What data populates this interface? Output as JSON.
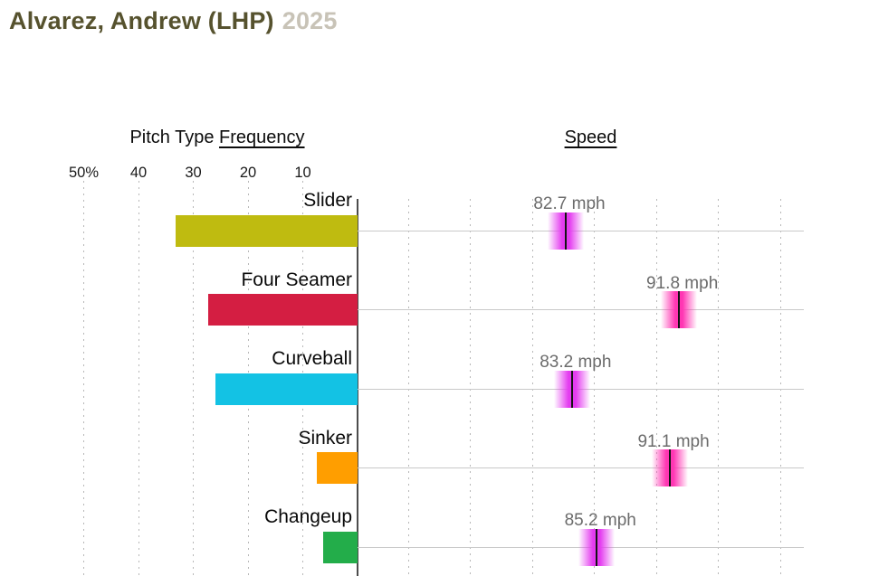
{
  "page_title": {
    "player": "Alvarez, Andrew (LHP)",
    "year": "2025"
  },
  "headers": {
    "frequency_prefix": "Pitch Type ",
    "frequency_underlined": "Frequency",
    "speed": "Speed"
  },
  "colors": {
    "title_text": "#56522e",
    "title_year": "#c8c3b7",
    "axis_line": "#4d4d4d",
    "gridline": "#b8b8b8",
    "row_line": "#c9c9c9",
    "speed_label_text": "#6b6b6b"
  },
  "chart_data": {
    "type": "bar",
    "title": "Pitch Type Frequency",
    "secondary_title": "Speed",
    "categories": [
      "Slider",
      "Four Seamer",
      "Curveball",
      "Sinker",
      "Changeup"
    ],
    "series": [
      {
        "name": "Frequency (%)",
        "values": [
          33.3,
          27.2,
          25.9,
          7.4,
          6.2
        ]
      },
      {
        "name": "Speed (mph)",
        "values": [
          82.7,
          91.8,
          83.2,
          91.1,
          85.2
        ]
      }
    ],
    "freq_axis": {
      "ticks": [
        {
          "label": "50%",
          "value": 50
        },
        {
          "label": "40",
          "value": 40
        },
        {
          "label": "30",
          "value": 30
        },
        {
          "label": "20",
          "value": 20
        },
        {
          "label": "10",
          "value": 10
        }
      ],
      "range": [
        0,
        50
      ],
      "direction": "right-to-left"
    },
    "speed_axis": {
      "gridlines_mph": [
        70,
        75,
        80,
        85,
        90,
        95,
        100
      ],
      "range": [
        66,
        102
      ],
      "tick_labels_visible": false,
      "grid": "dashed-vertical"
    },
    "pitches": [
      {
        "name": "Slider",
        "pct": 33.3,
        "pct_label": "33.3%",
        "bar_color": "#bfbb10",
        "speed": 82.7,
        "speed_label": "82.7 mph",
        "speed_color": "#e43cf0"
      },
      {
        "name": "Four Seamer",
        "pct": 27.2,
        "pct_label": "27.2%",
        "bar_color": "#d41e42",
        "speed": 91.8,
        "speed_label": "91.8 mph",
        "speed_color": "#ff36b3"
      },
      {
        "name": "Curveball",
        "pct": 25.9,
        "pct_label": "25.9%",
        "bar_color": "#13c2e4",
        "speed": 83.2,
        "speed_label": "83.2 mph",
        "speed_color": "#e43cf0"
      },
      {
        "name": "Sinker",
        "pct": 7.4,
        "pct_label": "7.4%",
        "bar_color": "#ff9e00",
        "speed": 91.1,
        "speed_label": "91.1 mph",
        "speed_color": "#ff36b3"
      },
      {
        "name": "Changeup",
        "pct": 6.2,
        "pct_label": "6.2%",
        "bar_color": "#23ad4a",
        "speed": 85.2,
        "speed_label": "85.2 mph",
        "speed_color": "#e43cf0"
      }
    ]
  }
}
